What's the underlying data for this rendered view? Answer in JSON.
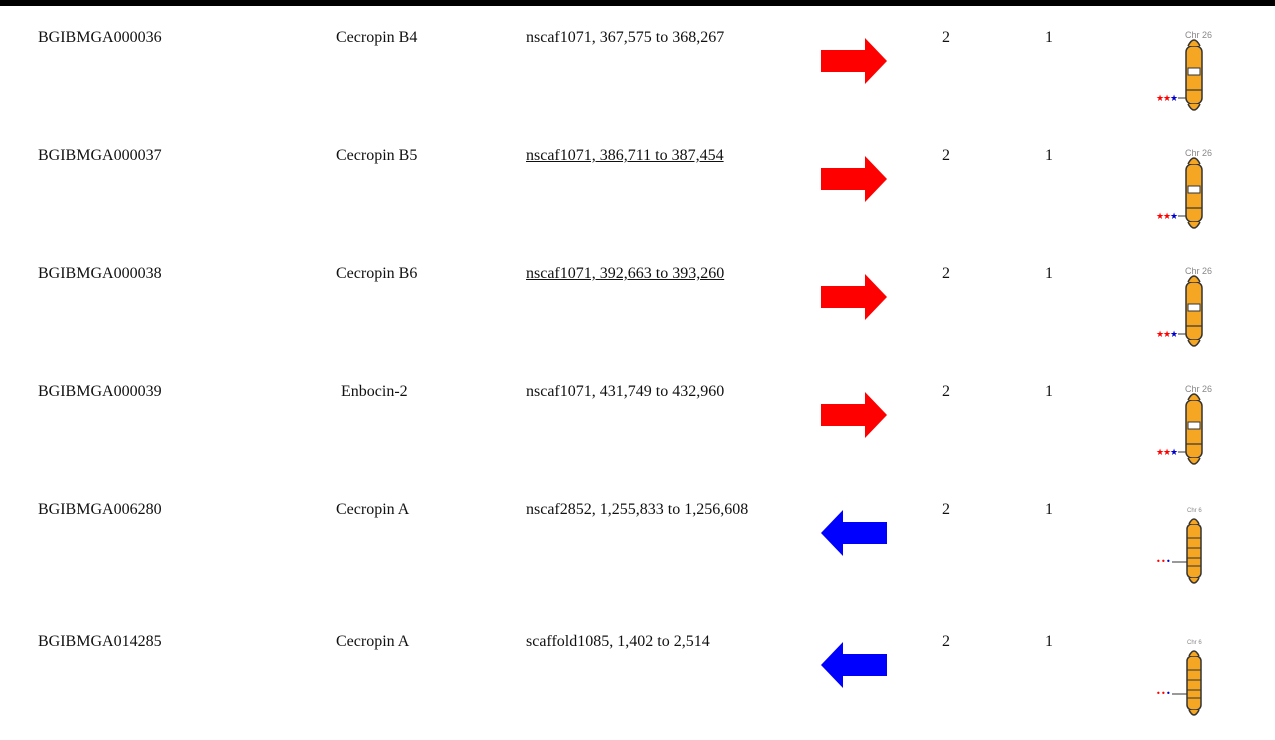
{
  "colors": {
    "forward": "#ff0000",
    "reverse": "#0000ff",
    "chromosome": "#f5a623",
    "marker_red": "#ff0000",
    "marker_blue": "#0000cc"
  },
  "rows": [
    {
      "id": "BGIBMGA000036",
      "name": "Cecropin  B4",
      "location": "nscaf1071, 367,575 to 368,267",
      "strand": "forward",
      "value1": "2",
      "value2": "1",
      "chr": "Chr 26",
      "location_underlined": false
    },
    {
      "id": "BGIBMGA000037",
      "name": "Cecropin  B5",
      "location": "nscaf1071, 386,711 to 387,454",
      "strand": "forward",
      "value1": "2",
      "value2": "1",
      "chr": "Chr 26",
      "location_underlined": true
    },
    {
      "id": "BGIBMGA000038",
      "name": "Cecropin  B6",
      "location": "nscaf1071, 392,663 to 393,260",
      "strand": "forward",
      "value1": "2",
      "value2": "1",
      "chr": "Chr 26",
      "location_underlined": true
    },
    {
      "id": "BGIBMGA000039",
      "name": "Enbocin-2",
      "location": "nscaf1071, 431,749 to 432,960",
      "strand": "forward",
      "value1": "2",
      "value2": "1",
      "chr": "Chr 26",
      "location_underlined": false
    },
    {
      "id": "BGIBMGA006280",
      "name": "Cecropin  A",
      "location": "nscaf2852, 1,255,833 to 1,256,608",
      "strand": "reverse",
      "value1": "2",
      "value2": "1",
      "chr": "Chr 6",
      "location_underlined": false
    },
    {
      "id": "BGIBMGA014285",
      "name": "Cecropin  A",
      "location": "scaffold1085, 1,402 to 2,514",
      "strand": "reverse",
      "value1": "2",
      "value2": "1",
      "chr": "Chr 6",
      "location_underlined": false
    }
  ]
}
